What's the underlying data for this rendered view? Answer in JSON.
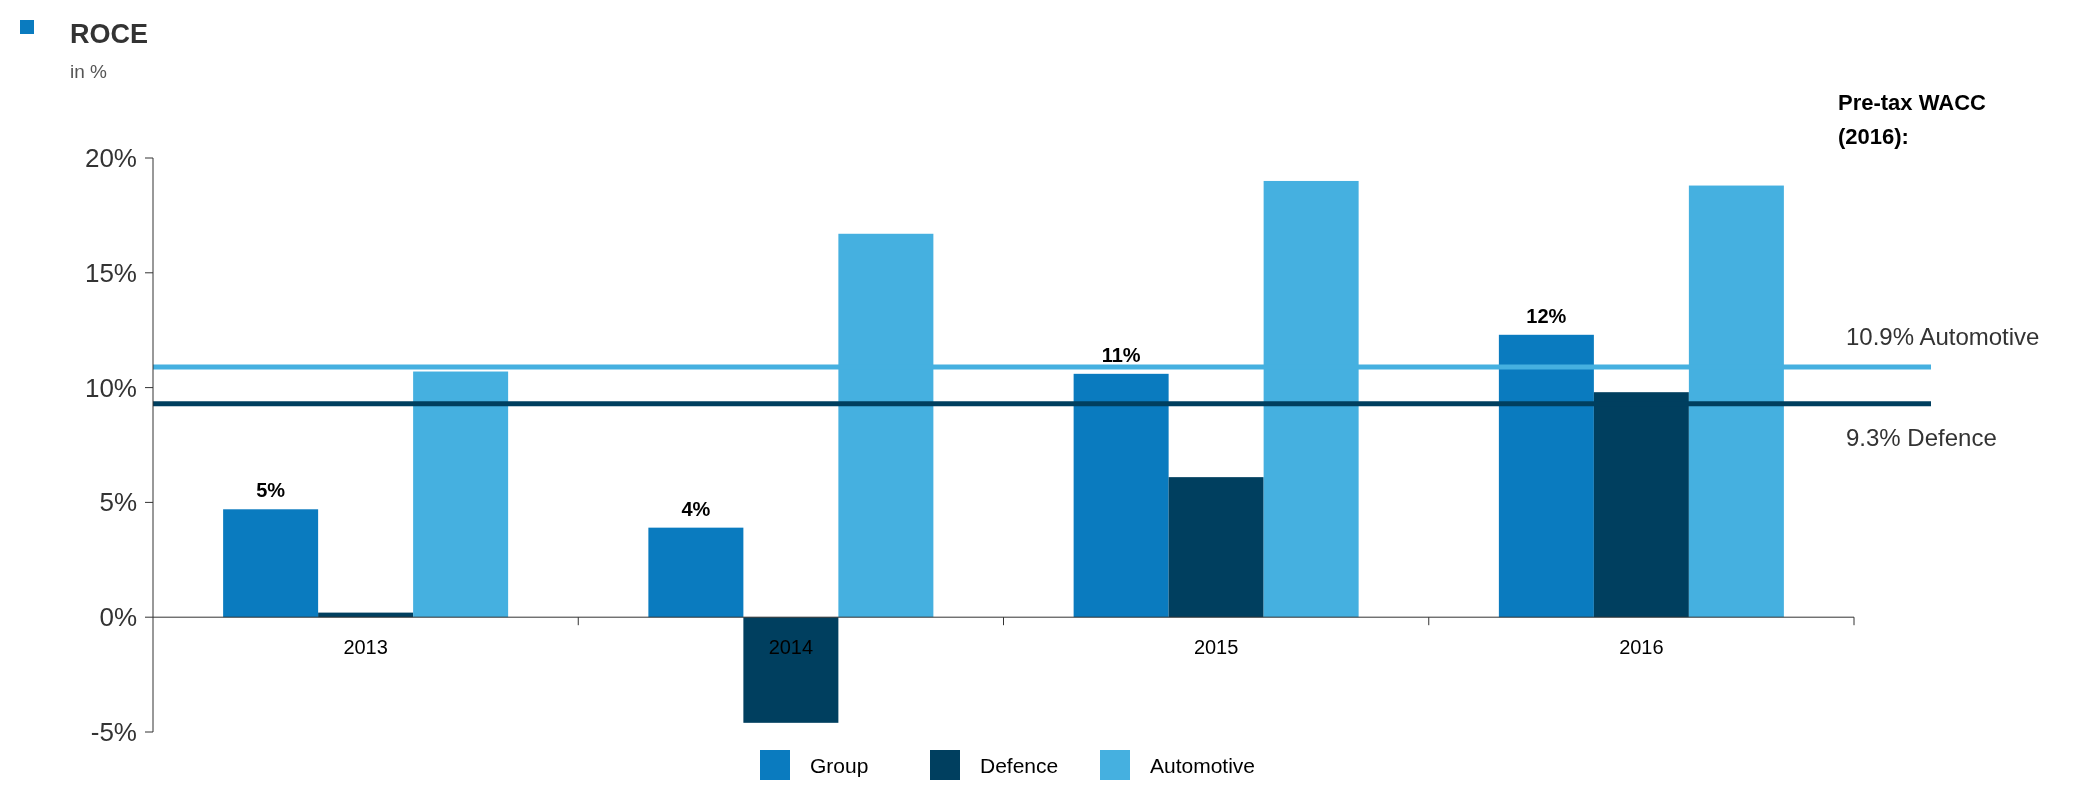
{
  "chart_data": {
    "type": "bar",
    "title": "ROCE",
    "subtitle": "in %",
    "annotations": [
      "Pre-tax WACC (2016):"
    ],
    "categories": [
      "2013",
      "2014",
      "2015",
      "2016"
    ],
    "series": [
      {
        "name": "Group",
        "color": "#0a7bbf",
        "values": [
          4.7,
          3.9,
          10.6,
          12.3
        ],
        "value_labels": [
          "5%",
          "4%",
          "11%",
          "12%"
        ]
      },
      {
        "name": "Defence",
        "color": "#003f5f",
        "values": [
          0.2,
          -4.6,
          6.1,
          9.8
        ]
      },
      {
        "name": "Automotive",
        "color": "#45b0e0",
        "values": [
          10.7,
          16.7,
          19.0,
          18.8
        ]
      }
    ],
    "ylim": [
      -5,
      20
    ],
    "yticks": [
      {
        "value": -5,
        "label": "-5%"
      },
      {
        "value": 0,
        "label": "0%"
      },
      {
        "value": 5,
        "label": "5%"
      },
      {
        "value": 10,
        "label": "10%"
      },
      {
        "value": 15,
        "label": "15%"
      },
      {
        "value": 20,
        "label": "20%"
      }
    ],
    "ref_lines": [
      {
        "axis": "y",
        "value": 10.9,
        "label": "10.9% Automotive",
        "color": "#45b0e0"
      },
      {
        "axis": "y",
        "value": 9.3,
        "label": "9.3% Defence",
        "color": "#003f5f"
      }
    ],
    "grid": false,
    "legend": "bottom"
  }
}
